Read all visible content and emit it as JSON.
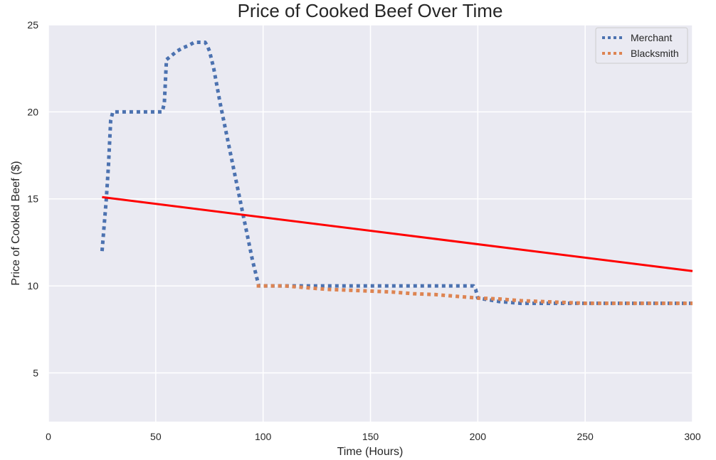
{
  "chart_data": {
    "type": "line",
    "title": "Price of Cooked Beef Over Time",
    "xlabel": "Time (Hours)",
    "ylabel": "Price of Cooked Beef ($)",
    "xlim": [
      0,
      300
    ],
    "ylim": [
      2.2,
      25
    ],
    "xticks": [
      "0",
      "50",
      "100",
      "150",
      "200",
      "250",
      "300"
    ],
    "yticks": [
      "5",
      "10",
      "15",
      "20",
      "25"
    ],
    "grid": true,
    "legend_position": "top-right",
    "series": [
      {
        "name": "Merchant",
        "style": "dotted",
        "color": "#4c72b0",
        "x": [
          25,
          26,
          27,
          28,
          29,
          30,
          32,
          35,
          40,
          45,
          50,
          52,
          53,
          54,
          55,
          57,
          60,
          63,
          65,
          68,
          70,
          71,
          72,
          73,
          74,
          75,
          77,
          80,
          85,
          90,
          95,
          98,
          100,
          105,
          110,
          120,
          130,
          140,
          150,
          160,
          170,
          180,
          190,
          195,
          196,
          197,
          198,
          199,
          200,
          210,
          220,
          230,
          240,
          250,
          260,
          270,
          280,
          290,
          300
        ],
        "y": [
          12,
          13.5,
          15,
          17,
          19.5,
          20,
          20,
          20,
          20,
          20,
          20,
          20,
          20,
          20.5,
          23,
          23.2,
          23.5,
          23.7,
          23.8,
          24,
          24,
          24,
          24,
          24,
          23.8,
          23.5,
          22.5,
          20.5,
          17.5,
          14.5,
          11.5,
          10,
          10,
          10,
          10,
          10,
          10,
          10,
          10,
          10,
          10,
          10,
          10,
          10,
          10,
          10,
          10,
          9.8,
          9.3,
          9.1,
          9,
          9,
          9,
          9,
          9,
          9,
          9,
          9,
          9
        ]
      },
      {
        "name": "Blacksmith",
        "style": "dotted",
        "color": "#dd8452",
        "x": [
          97,
          100,
          110,
          120,
          130,
          140,
          150,
          160,
          170,
          180,
          190,
          200,
          210,
          220,
          230,
          240,
          250,
          260,
          270,
          280,
          290,
          300
        ],
        "y": [
          10,
          10,
          10,
          9.9,
          9.8,
          9.75,
          9.7,
          9.65,
          9.55,
          9.5,
          9.4,
          9.3,
          9.25,
          9.15,
          9.1,
          9.05,
          9,
          9,
          9,
          9,
          9,
          9
        ]
      },
      {
        "style": "solid",
        "color": "#ff0000",
        "x": [
          25,
          300
        ],
        "y": [
          15.1,
          10.85
        ]
      }
    ]
  }
}
